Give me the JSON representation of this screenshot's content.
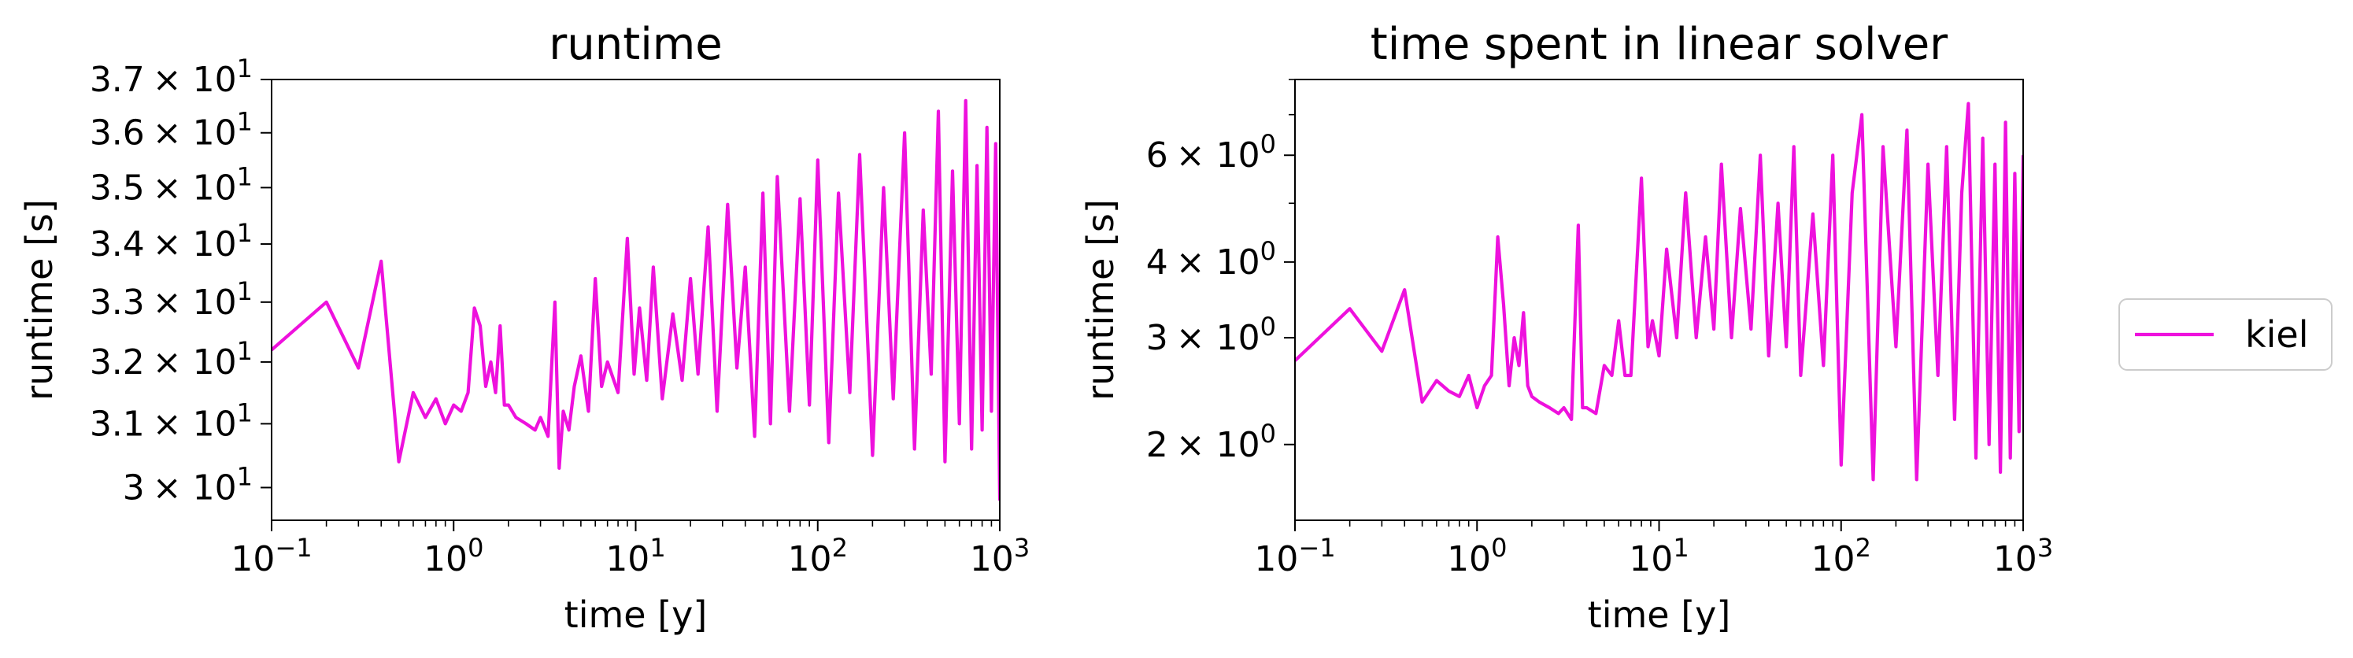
{
  "chart_data": [
    {
      "type": "line",
      "title": "runtime",
      "xlabel": "time [y]",
      "ylabel": "runtime [s]",
      "xscale": "log",
      "yscale": "log",
      "xlim": [
        0.1,
        1000
      ],
      "ylim": [
        29.5,
        37.0
      ],
      "xticks": [
        {
          "value": 0.1,
          "base": "10",
          "exp": "−1"
        },
        {
          "value": 1,
          "base": "10",
          "exp": "0"
        },
        {
          "value": 10,
          "base": "10",
          "exp": "1"
        },
        {
          "value": 100,
          "base": "10",
          "exp": "2"
        },
        {
          "value": 1000,
          "base": "10",
          "exp": "3"
        }
      ],
      "yticks": [
        {
          "value": 30,
          "mant": "3",
          "base": "× 10",
          "exp": "1"
        },
        {
          "value": 31,
          "mant": "3.1",
          "base": "× 10",
          "exp": "1"
        },
        {
          "value": 32,
          "mant": "3.2",
          "base": "× 10",
          "exp": "1"
        },
        {
          "value": 33,
          "mant": "3.3",
          "base": "× 10",
          "exp": "1"
        },
        {
          "value": 34,
          "mant": "3.4",
          "base": "× 10",
          "exp": "1"
        },
        {
          "value": 35,
          "mant": "3.5",
          "base": "× 10",
          "exp": "1"
        },
        {
          "value": 36,
          "mant": "3.6",
          "base": "× 10",
          "exp": "1"
        },
        {
          "value": 37,
          "mant": "3.7",
          "base": "× 10",
          "exp": "1"
        }
      ],
      "series": [
        {
          "name": "kiel",
          "color": "#ee11dd",
          "x": [
            0.1,
            0.2,
            0.3,
            0.4,
            0.5,
            0.6,
            0.7,
            0.8,
            0.9,
            1.0,
            1.1,
            1.2,
            1.3,
            1.4,
            1.5,
            1.6,
            1.7,
            1.8,
            1.9,
            2.0,
            2.2,
            2.5,
            2.8,
            3.0,
            3.3,
            3.6,
            3.8,
            4.0,
            4.3,
            4.6,
            5.0,
            5.5,
            6.0,
            6.5,
            7.0,
            8.0,
            9.0,
            9.8,
            10.5,
            11.5,
            12.5,
            14,
            16,
            18,
            20,
            22,
            25,
            28,
            32,
            36,
            40,
            45,
            50,
            55,
            60,
            70,
            80,
            90,
            100,
            115,
            130,
            150,
            170,
            200,
            230,
            260,
            300,
            340,
            380,
            420,
            460,
            500,
            550,
            600,
            650,
            700,
            750,
            800,
            850,
            900,
            950,
            1000
          ],
          "y": [
            32.2,
            33.0,
            31.9,
            33.7,
            30.4,
            31.5,
            31.1,
            31.4,
            31.0,
            31.3,
            31.2,
            31.5,
            32.9,
            32.6,
            31.6,
            32.0,
            31.5,
            32.6,
            31.3,
            31.3,
            31.1,
            31.0,
            30.9,
            31.1,
            30.8,
            33.0,
            30.3,
            31.2,
            30.9,
            31.6,
            32.1,
            31.2,
            33.4,
            31.6,
            32.0,
            31.5,
            34.1,
            31.8,
            32.9,
            31.7,
            33.6,
            31.4,
            32.8,
            31.7,
            33.4,
            31.8,
            34.3,
            31.2,
            34.7,
            31.9,
            33.6,
            30.8,
            34.9,
            31.0,
            35.2,
            31.2,
            34.8,
            31.3,
            35.5,
            30.7,
            34.9,
            31.5,
            35.6,
            30.5,
            35.0,
            31.4,
            36.0,
            30.6,
            34.6,
            31.8,
            36.4,
            30.4,
            35.3,
            31.0,
            36.6,
            30.6,
            35.4,
            30.9,
            36.1,
            31.2,
            35.8,
            29.8
          ]
        }
      ]
    },
    {
      "type": "line",
      "title": "time spent in linear solver",
      "xlabel": "time [y]",
      "ylabel": "runtime [s]",
      "xscale": "log",
      "yscale": "log",
      "xlim": [
        0.1,
        1000
      ],
      "ylim": [
        1.5,
        8.0
      ],
      "xticks": [
        {
          "value": 0.1,
          "base": "10",
          "exp": "−1"
        },
        {
          "value": 1,
          "base": "10",
          "exp": "0"
        },
        {
          "value": 10,
          "base": "10",
          "exp": "1"
        },
        {
          "value": 100,
          "base": "10",
          "exp": "2"
        },
        {
          "value": 1000,
          "base": "10",
          "exp": "3"
        }
      ],
      "yticks": [
        {
          "value": 2,
          "mant": "2",
          "base": "× 10",
          "exp": "0"
        },
        {
          "value": 3,
          "mant": "3",
          "base": "× 10",
          "exp": "0"
        },
        {
          "value": 4,
          "mant": "4",
          "base": "× 10",
          "exp": "0"
        },
        {
          "value": 6,
          "mant": "6",
          "base": "× 10",
          "exp": "0"
        }
      ],
      "minor_yticks": [
        5,
        7,
        8
      ],
      "series": [
        {
          "name": "kiel",
          "color": "#ee11dd",
          "x": [
            0.1,
            0.2,
            0.3,
            0.4,
            0.5,
            0.6,
            0.7,
            0.8,
            0.9,
            1.0,
            1.1,
            1.2,
            1.3,
            1.4,
            1.5,
            1.6,
            1.7,
            1.8,
            1.9,
            2.0,
            2.2,
            2.5,
            2.8,
            3.0,
            3.3,
            3.6,
            3.8,
            4.0,
            4.5,
            5.0,
            5.5,
            6.0,
            6.5,
            7.0,
            8.0,
            8.7,
            9.2,
            10,
            11,
            12.5,
            14,
            16,
            18,
            20,
            22,
            25,
            28,
            32,
            36,
            40,
            45,
            50,
            55,
            60,
            70,
            80,
            90,
            100,
            115,
            130,
            150,
            170,
            200,
            230,
            260,
            300,
            340,
            380,
            420,
            460,
            500,
            550,
            600,
            650,
            700,
            750,
            800,
            850,
            900,
            950,
            1000
          ],
          "y": [
            2.75,
            3.35,
            2.85,
            3.6,
            2.35,
            2.55,
            2.45,
            2.4,
            2.6,
            2.3,
            2.5,
            2.6,
            4.4,
            3.4,
            2.5,
            3.0,
            2.7,
            3.3,
            2.5,
            2.4,
            2.35,
            2.3,
            2.25,
            2.3,
            2.2,
            4.6,
            2.3,
            2.3,
            2.25,
            2.7,
            2.6,
            3.2,
            2.6,
            2.6,
            5.5,
            2.9,
            3.2,
            2.8,
            4.2,
            3.0,
            5.2,
            3.0,
            4.4,
            3.1,
            5.8,
            3.0,
            4.9,
            3.1,
            6.0,
            2.8,
            5.0,
            2.9,
            6.2,
            2.6,
            4.8,
            2.7,
            6.0,
            1.85,
            5.2,
            7.0,
            1.75,
            6.2,
            2.9,
            6.6,
            1.75,
            5.8,
            2.6,
            6.2,
            2.2,
            5.2,
            7.3,
            1.9,
            6.4,
            2.0,
            5.8,
            1.8,
            6.8,
            1.9,
            5.6,
            2.1,
            6.0
          ]
        }
      ]
    }
  ],
  "legend": {
    "placement": "right",
    "entries": [
      {
        "label": "kiel",
        "color": "#ee11dd"
      }
    ]
  }
}
